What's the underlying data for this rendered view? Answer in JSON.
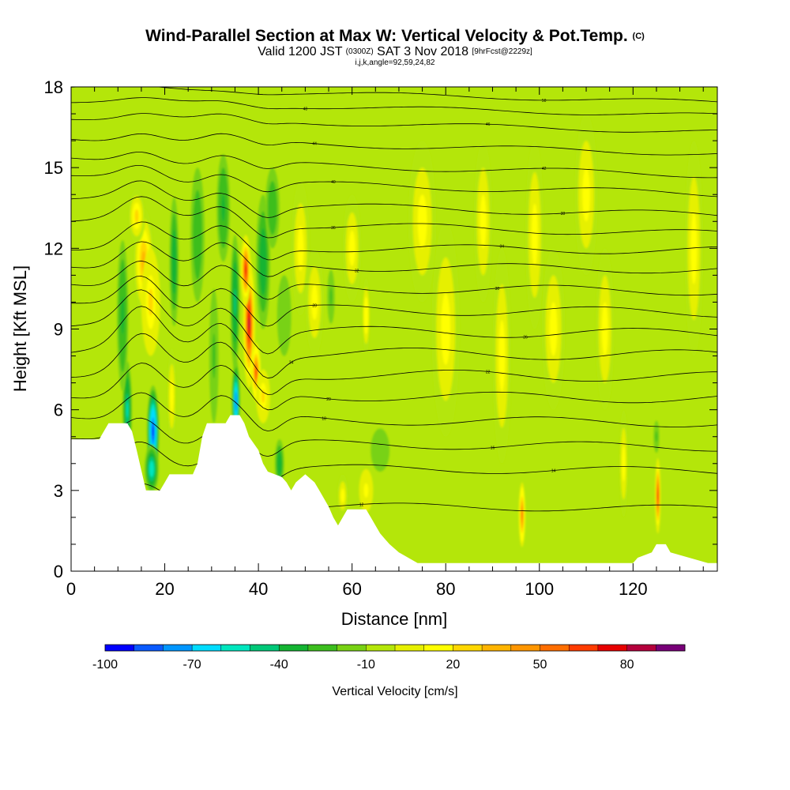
{
  "title": {
    "main": "Wind-Parallel Section at Max W: Vertical Velocity & Pot.Temp.",
    "main_suffix": "(C)",
    "line2_a": "Valid 1200 JST",
    "line2_b": "(0300Z)",
    "line2_c": "SAT 3 Nov 2018",
    "line2_d": "[9hrFcst@2229z]",
    "line3": "i,j,k,angle=92,59,24,82"
  },
  "chart_data": {
    "type": "heatmap",
    "xlabel": "Distance [nm]",
    "ylabel": "Height [Kft MSL]",
    "xlim": [
      0,
      138
    ],
    "ylim": [
      0,
      18
    ],
    "xticks": [
      0,
      20,
      40,
      60,
      80,
      100,
      120
    ],
    "yticks": [
      0,
      3,
      6,
      9,
      12,
      15,
      18
    ],
    "colorbar": {
      "label": "Vertical Velocity [cm/s]",
      "ticks": [
        -100,
        -70,
        -40,
        -10,
        20,
        50,
        80
      ],
      "bins": [
        -100,
        -90,
        -80,
        -70,
        -60,
        -50,
        -40,
        -30,
        -20,
        -10,
        0,
        10,
        20,
        30,
        40,
        50,
        60,
        70,
        80,
        90,
        100
      ],
      "colors": [
        "#0000ff",
        "#0a5aff",
        "#0096ff",
        "#00dcff",
        "#00e6be",
        "#00c878",
        "#14b432",
        "#3cbe1e",
        "#78d214",
        "#b4e60a",
        "#e6f000",
        "#ffff00",
        "#ffd700",
        "#ffb400",
        "#ff9600",
        "#ff6e00",
        "#ff3c00",
        "#e60000",
        "#b4003c",
        "#780078"
      ]
    },
    "background_w": -8,
    "cells": [
      {
        "x": 17.5,
        "y": 5.2,
        "sx": 1.3,
        "sy": 1.7,
        "w": -95
      },
      {
        "x": 17.2,
        "y": 3.8,
        "sx": 1.5,
        "sy": 0.9,
        "w": -60
      },
      {
        "x": 12.0,
        "y": 6.0,
        "sx": 1.0,
        "sy": 1.8,
        "w": -55
      },
      {
        "x": 11.0,
        "y": 9.5,
        "sx": 1.2,
        "sy": 2.8,
        "w": -35
      },
      {
        "x": 15.5,
        "y": 11.5,
        "sx": 2.2,
        "sy": 2.0,
        "w": 30
      },
      {
        "x": 17.0,
        "y": 10.0,
        "sx": 2.0,
        "sy": 2.0,
        "w": 25
      },
      {
        "x": 14.0,
        "y": 13.2,
        "sx": 1.8,
        "sy": 1.0,
        "w": 22
      },
      {
        "x": 21.5,
        "y": 6.5,
        "sx": 1.0,
        "sy": 1.8,
        "w": 15
      },
      {
        "x": 22.0,
        "y": 11.5,
        "sx": 1.0,
        "sy": 2.4,
        "w": -40
      },
      {
        "x": 27.0,
        "y": 12.5,
        "sx": 1.5,
        "sy": 2.5,
        "w": -30
      },
      {
        "x": 30.5,
        "y": 8.0,
        "sx": 1.0,
        "sy": 2.5,
        "w": -25
      },
      {
        "x": 32.5,
        "y": 13.5,
        "sx": 1.4,
        "sy": 2.0,
        "w": -35
      },
      {
        "x": 35.2,
        "y": 6.3,
        "sx": 0.9,
        "sy": 1.5,
        "w": -80
      },
      {
        "x": 35.0,
        "y": 10.0,
        "sx": 1.0,
        "sy": 2.5,
        "w": -45
      },
      {
        "x": 38.0,
        "y": 9.2,
        "sx": 1.3,
        "sy": 2.4,
        "w": 80
      },
      {
        "x": 37.3,
        "y": 11.2,
        "sx": 1.1,
        "sy": 1.3,
        "w": 70
      },
      {
        "x": 39.5,
        "y": 7.4,
        "sx": 1.0,
        "sy": 1.1,
        "w": 65
      },
      {
        "x": 41.0,
        "y": 6.5,
        "sx": 1.5,
        "sy": 1.0,
        "w": 25
      },
      {
        "x": 41.0,
        "y": 11.5,
        "sx": 1.5,
        "sy": 2.5,
        "w": -40
      },
      {
        "x": 43.0,
        "y": 13.5,
        "sx": 1.5,
        "sy": 1.5,
        "w": -30
      },
      {
        "x": 44.5,
        "y": 4.0,
        "sx": 1.0,
        "sy": 0.9,
        "w": -40
      },
      {
        "x": 45.5,
        "y": 9.5,
        "sx": 1.5,
        "sy": 1.5,
        "w": -20
      },
      {
        "x": 49.0,
        "y": 12.0,
        "sx": 2.0,
        "sy": 2.5,
        "w": 12
      },
      {
        "x": 52.0,
        "y": 10.0,
        "sx": 2.0,
        "sy": 2.0,
        "w": 12
      },
      {
        "x": 55.5,
        "y": 10.2,
        "sx": 0.8,
        "sy": 1.0,
        "w": -25
      },
      {
        "x": 60.0,
        "y": 12.0,
        "sx": 2.0,
        "sy": 2.0,
        "w": 12
      },
      {
        "x": 63.0,
        "y": 9.5,
        "sx": 0.9,
        "sy": 1.4,
        "w": 18
      },
      {
        "x": 66.0,
        "y": 4.5,
        "sx": 2.0,
        "sy": 0.8,
        "w": -18
      },
      {
        "x": 63.0,
        "y": 3.0,
        "sx": 1.5,
        "sy": 0.8,
        "w": 16
      },
      {
        "x": 58.0,
        "y": 2.8,
        "sx": 1.2,
        "sy": 0.8,
        "w": 14
      },
      {
        "x": 75.0,
        "y": 13.0,
        "sx": 3.0,
        "sy": 3.0,
        "w": 12
      },
      {
        "x": 80.0,
        "y": 9.0,
        "sx": 3.0,
        "sy": 4.0,
        "w": 12
      },
      {
        "x": 88.0,
        "y": 13.0,
        "sx": 2.0,
        "sy": 3.0,
        "w": 12
      },
      {
        "x": 92.0,
        "y": 8.0,
        "sx": 2.0,
        "sy": 4.0,
        "w": 12
      },
      {
        "x": 96.3,
        "y": 2.1,
        "sx": 0.7,
        "sy": 1.2,
        "w": 55
      },
      {
        "x": 99.0,
        "y": 12.5,
        "sx": 2.0,
        "sy": 3.5,
        "w": 12
      },
      {
        "x": 103.0,
        "y": 9.0,
        "sx": 2.5,
        "sy": 3.0,
        "w": 12
      },
      {
        "x": 110.0,
        "y": 14.0,
        "sx": 2.5,
        "sy": 3.0,
        "w": 12
      },
      {
        "x": 114.0,
        "y": 9.0,
        "sx": 2.0,
        "sy": 3.0,
        "w": 12
      },
      {
        "x": 118.0,
        "y": 4.0,
        "sx": 1.0,
        "sy": 2.0,
        "w": 14
      },
      {
        "x": 125.3,
        "y": 2.8,
        "sx": 0.6,
        "sy": 1.4,
        "w": 70
      },
      {
        "x": 125.0,
        "y": 5.0,
        "sx": 0.6,
        "sy": 0.6,
        "w": -25
      },
      {
        "x": 133.0,
        "y": 12.0,
        "sx": 2.0,
        "sy": 4.0,
        "w": 12
      }
    ],
    "terrain": {
      "x": [
        0,
        6,
        7,
        8,
        12,
        13,
        14,
        16,
        19,
        20,
        21,
        26,
        27,
        28,
        29,
        33,
        34,
        36,
        37,
        38,
        40,
        41,
        42,
        45,
        46,
        47,
        48,
        50,
        52,
        53,
        54,
        55,
        56,
        57,
        58,
        59,
        60,
        61,
        63,
        64,
        65,
        66,
        67,
        68,
        70,
        71,
        72,
        73,
        74,
        120,
        121,
        124,
        125,
        127,
        128,
        136,
        138
      ],
      "y": [
        4.9,
        4.9,
        5.2,
        5.5,
        5.5,
        5.2,
        4.5,
        3.0,
        3.0,
        3.3,
        3.6,
        3.6,
        4.0,
        5.0,
        5.5,
        5.5,
        5.8,
        5.8,
        5.5,
        5.0,
        4.5,
        4.0,
        3.7,
        3.5,
        3.3,
        3.0,
        3.3,
        3.6,
        3.3,
        3.0,
        2.7,
        2.4,
        2.0,
        1.7,
        2.0,
        2.3,
        2.3,
        2.3,
        2.3,
        2.0,
        1.7,
        1.4,
        1.2,
        1.0,
        0.7,
        0.6,
        0.5,
        0.4,
        0.3,
        0.3,
        0.5,
        0.7,
        1.0,
        1.0,
        0.7,
        0.3,
        0.3
      ]
    },
    "contours": [
      {
        "label": "12",
        "base": 2.4,
        "label_x": 62
      },
      {
        "label": "14",
        "base": 3.8,
        "label_x": 103
      },
      {
        "label": "16",
        "base": 4.7,
        "label_x": 90
      },
      {
        "label": "18",
        "base": 5.6,
        "label_x": 54
      },
      {
        "label": "20",
        "base": 6.5,
        "label_x": 55
      },
      {
        "label": "22",
        "base": 7.3,
        "label_x": 89
      },
      {
        "label": "24",
        "base": 8.1,
        "label_x": 47
      },
      {
        "label": "26",
        "base": 8.9,
        "label_x": 97
      },
      {
        "label": "28",
        "base": 9.7,
        "label_x": 52
      },
      {
        "label": "30",
        "base": 10.5,
        "label_x": 91
      },
      {
        "label": "32",
        "base": 11.3,
        "label_x": 61
      },
      {
        "label": "34",
        "base": 12.0,
        "label_x": 92
      },
      {
        "label": "36",
        "base": 12.8,
        "label_x": 56
      },
      {
        "label": "38",
        "base": 13.5,
        "label_x": 105
      },
      {
        "label": "40",
        "base": 14.3,
        "label_x": 56
      },
      {
        "label": "42",
        "base": 15.0,
        "label_x": 101
      },
      {
        "label": "44",
        "base": 15.8,
        "label_x": 52
      },
      {
        "label": "46",
        "base": 16.6,
        "label_x": 89
      },
      {
        "label": "48",
        "base": 17.2,
        "label_x": 50
      },
      {
        "label": "50",
        "base": 17.7,
        "label_x": 101
      }
    ]
  }
}
